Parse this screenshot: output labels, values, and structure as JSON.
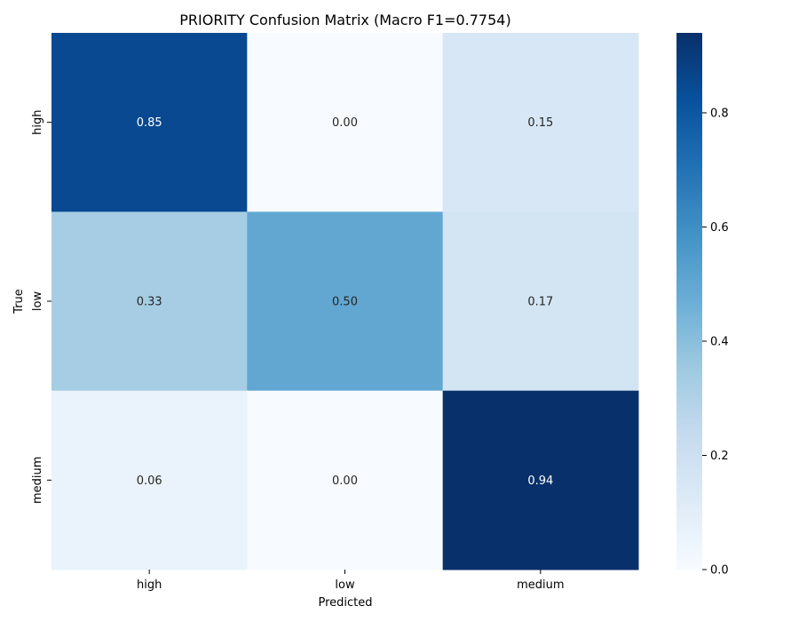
{
  "chart_data": {
    "type": "heatmap",
    "title": "PRIORITY Confusion Matrix (Macro F1=0.7754)",
    "xlabel": "Predicted",
    "ylabel": "True",
    "x_categories": [
      "high",
      "low",
      "medium"
    ],
    "y_categories": [
      "high",
      "low",
      "medium"
    ],
    "values": [
      [
        0.85,
        0.0,
        0.15
      ],
      [
        0.33,
        0.5,
        0.17
      ],
      [
        0.06,
        0.0,
        0.94
      ]
    ],
    "annotations": [
      [
        "0.85",
        "0.00",
        "0.15"
      ],
      [
        "0.33",
        "0.50",
        "0.17"
      ],
      [
        "0.06",
        "0.00",
        "0.94"
      ]
    ],
    "colormap": "Blues",
    "colorbar": {
      "range": [
        0,
        0.94
      ],
      "ticks": [
        0.0,
        0.2,
        0.4,
        0.6,
        0.8
      ],
      "tick_labels": [
        "0.0",
        "0.2",
        "0.4",
        "0.6",
        "0.8"
      ]
    },
    "grid": false,
    "legend": "colorbar-right"
  }
}
